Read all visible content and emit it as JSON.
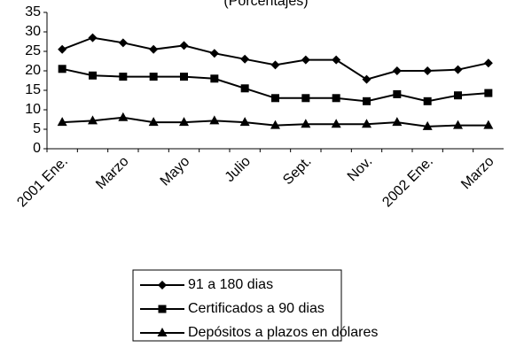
{
  "chart_data": {
    "type": "line",
    "subtitle": "(Porcentajes)",
    "categories": [
      "2001 Ene.",
      null,
      "Marzo",
      null,
      "Mayo",
      null,
      "Julio",
      null,
      "Sept.",
      null,
      "Nov.",
      null,
      "2002 Ene.",
      null,
      "Marzo"
    ],
    "series": [
      {
        "name": "91 a 180 dias",
        "color": "#000000",
        "marker": "diamond",
        "values": [
          25.5,
          28.5,
          27.2,
          25.5,
          26.5,
          24.5,
          23,
          21.5,
          22.8,
          22.8,
          17.8,
          20,
          20,
          20.3,
          22
        ]
      },
      {
        "name": "Certificados a  90 dias",
        "color": "#000000",
        "marker": "square",
        "values": [
          20.5,
          18.8,
          18.5,
          18.5,
          18.5,
          18,
          15.5,
          13,
          13,
          13,
          12.2,
          14,
          12.2,
          13.7,
          14.3
        ]
      },
      {
        "name": "Depósitos a  plazos en dólares",
        "color": "#000000",
        "marker": "triangle",
        "values": [
          6.8,
          7.2,
          8,
          6.8,
          6.8,
          7.2,
          6.8,
          6,
          6.3,
          6.3,
          6.3,
          6.8,
          5.7,
          6,
          6
        ]
      }
    ],
    "ylim": [
      0,
      35
    ],
    "yticks": [
      0,
      5,
      10,
      15,
      20,
      25,
      30,
      35
    ]
  }
}
